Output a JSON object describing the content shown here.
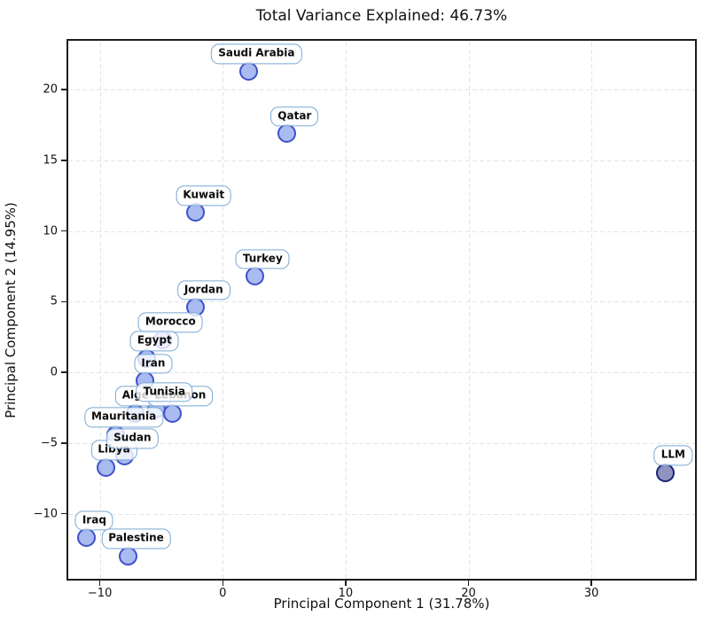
{
  "chart_data": {
    "type": "scatter",
    "title": "Total Variance Explained: 46.73%",
    "xlabel": "Principal Component 1 (31.78%)",
    "ylabel": "Principal Component 2 (14.95%)",
    "xlim": [
      -12.57,
      38.43
    ],
    "ylim": [
      -14.6,
      23.46
    ],
    "xticks": [
      -10,
      0,
      10,
      20,
      30
    ],
    "yticks": [
      -10,
      -5,
      0,
      5,
      10,
      15,
      20
    ],
    "grid": true,
    "grid_style": "dashed",
    "legend": "none",
    "points": [
      {
        "label": "Saudi Arabia",
        "x": 2.1,
        "y": 21.3,
        "type": "country"
      },
      {
        "label": "Qatar",
        "x": 5.2,
        "y": 16.9,
        "type": "country"
      },
      {
        "label": "Kuwait",
        "x": -2.2,
        "y": 11.3,
        "type": "country"
      },
      {
        "label": "Turkey",
        "x": 2.6,
        "y": 6.8,
        "type": "country"
      },
      {
        "label": "Jordan",
        "x": -2.2,
        "y": 4.6,
        "type": "country"
      },
      {
        "label": "Morocco",
        "x": -4.9,
        "y": 2.3,
        "type": "country"
      },
      {
        "label": "Egypt",
        "x": -6.2,
        "y": 1.0,
        "type": "country"
      },
      {
        "label": "Iran",
        "x": -6.3,
        "y": -0.6,
        "type": "country"
      },
      {
        "label": "Algeria",
        "x": -7.1,
        "y": -2.9,
        "type": "country"
      },
      {
        "label": "Lebanon",
        "x": -4.1,
        "y": -2.9,
        "type": "country"
      },
      {
        "label": "Tunisia",
        "x": -5.4,
        "y": -2.6,
        "type": "country"
      },
      {
        "label": "Mauritania",
        "x": -8.7,
        "y": -4.4,
        "type": "country"
      },
      {
        "label": "Libya",
        "x": -9.5,
        "y": -6.7,
        "type": "country"
      },
      {
        "label": "Sudan",
        "x": -8.0,
        "y": -5.9,
        "type": "country"
      },
      {
        "label": "Iraq",
        "x": -11.1,
        "y": -11.7,
        "type": "country"
      },
      {
        "label": "Palestine",
        "x": -7.7,
        "y": -13.0,
        "type": "country"
      },
      {
        "label": "LLM",
        "x": 36.0,
        "y": -7.1,
        "type": "llm"
      }
    ],
    "colors": {
      "country_marker_fill": "rgba(65,105,225,0.45)",
      "country_marker_edge": "#3f51c9",
      "llm_marker_fill": "rgba(30,40,130,0.50)",
      "llm_marker_edge": "#1b2473",
      "label_box_bg": "rgba(255,255,255,0.78)",
      "label_box_border": "#79a8d4",
      "grid": "#e4e4e6",
      "spine": "#1c1c1c"
    }
  }
}
